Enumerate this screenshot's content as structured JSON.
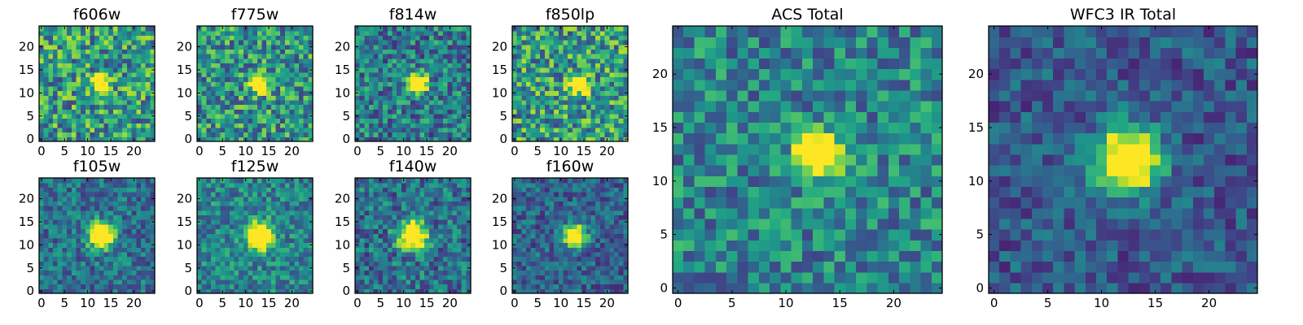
{
  "chart_data": [
    {
      "type": "heatmap",
      "title": "f606w",
      "grid_size": 25,
      "xlim": [
        -0.5,
        24.5
      ],
      "ylim": [
        -0.5,
        24.5
      ],
      "xticks": [
        0,
        5,
        10,
        15,
        20
      ],
      "yticks": [
        0,
        5,
        10,
        15,
        20
      ],
      "source_center": [
        13,
        12
      ],
      "peak_width": 1.2,
      "background_level": 0.55,
      "noise_amplitude": 0.34,
      "seed": 11,
      "colormap": "viridis"
    },
    {
      "type": "heatmap",
      "title": "f775w",
      "grid_size": 25,
      "xlim": [
        -0.5,
        24.5
      ],
      "ylim": [
        -0.5,
        24.5
      ],
      "xticks": [
        0,
        5,
        10,
        15,
        20
      ],
      "yticks": [
        0,
        5,
        10,
        15,
        20
      ],
      "source_center": [
        13,
        12
      ],
      "peak_width": 1.3,
      "background_level": 0.52,
      "noise_amplitude": 0.32,
      "seed": 23,
      "colormap": "viridis"
    },
    {
      "type": "heatmap",
      "title": "f814w",
      "grid_size": 25,
      "xlim": [
        -0.5,
        24.5
      ],
      "ylim": [
        -0.5,
        24.5
      ],
      "xticks": [
        0,
        5,
        10,
        15,
        20
      ],
      "yticks": [
        0,
        5,
        10,
        15,
        20
      ],
      "source_center": [
        13,
        12
      ],
      "peak_width": 1.4,
      "background_level": 0.42,
      "noise_amplitude": 0.28,
      "seed": 37,
      "colormap": "viridis"
    },
    {
      "type": "heatmap",
      "title": "f850lp",
      "grid_size": 25,
      "xlim": [
        -0.5,
        24.5
      ],
      "ylim": [
        -0.5,
        24.5
      ],
      "xticks": [
        0,
        5,
        10,
        15,
        20
      ],
      "yticks": [
        0,
        5,
        10,
        15,
        20
      ],
      "source_center": [
        14,
        12
      ],
      "peak_width": 1.3,
      "background_level": 0.55,
      "noise_amplitude": 0.34,
      "seed": 41,
      "colormap": "viridis"
    },
    {
      "type": "heatmap",
      "title": "f105w",
      "grid_size": 25,
      "xlim": [
        -0.5,
        24.5
      ],
      "ylim": [
        -0.5,
        24.5
      ],
      "xticks": [
        0,
        5,
        10,
        15,
        20
      ],
      "yticks": [
        0,
        5,
        10,
        15,
        20
      ],
      "source_center": [
        13,
        12
      ],
      "peak_width": 1.8,
      "background_level": 0.38,
      "noise_amplitude": 0.22,
      "seed": 53,
      "colormap": "viridis"
    },
    {
      "type": "heatmap",
      "title": "f125w",
      "grid_size": 25,
      "xlim": [
        -0.5,
        24.5
      ],
      "ylim": [
        -0.5,
        24.5
      ],
      "xticks": [
        0,
        5,
        10,
        15,
        20
      ],
      "yticks": [
        0,
        5,
        10,
        15,
        20
      ],
      "source_center": [
        13,
        12
      ],
      "peak_width": 1.9,
      "background_level": 0.45,
      "noise_amplitude": 0.22,
      "seed": 67,
      "colormap": "viridis"
    },
    {
      "type": "heatmap",
      "title": "f140w",
      "grid_size": 25,
      "xlim": [
        -0.5,
        24.5
      ],
      "ylim": [
        -0.5,
        24.5
      ],
      "xticks": [
        0,
        5,
        10,
        15,
        20
      ],
      "yticks": [
        0,
        5,
        10,
        15,
        20
      ],
      "source_center": [
        12,
        12
      ],
      "peak_width": 2.0,
      "background_level": 0.38,
      "noise_amplitude": 0.25,
      "seed": 79,
      "colormap": "viridis"
    },
    {
      "type": "heatmap",
      "title": "f160w",
      "grid_size": 25,
      "xlim": [
        -0.5,
        24.5
      ],
      "ylim": [
        -0.5,
        24.5
      ],
      "xticks": [
        0,
        5,
        10,
        15,
        20
      ],
      "yticks": [
        0,
        5,
        10,
        15,
        20
      ],
      "source_center": [
        13,
        12
      ],
      "peak_width": 1.6,
      "background_level": 0.32,
      "noise_amplitude": 0.2,
      "seed": 83,
      "colormap": "viridis"
    },
    {
      "type": "heatmap",
      "title": "ACS Total",
      "grid_size": 25,
      "xlim": [
        -0.5,
        24.5
      ],
      "ylim": [
        -0.5,
        24.5
      ],
      "xticks": [
        0,
        5,
        10,
        15,
        20
      ],
      "yticks": [
        0,
        5,
        10,
        15,
        20
      ],
      "source_center": [
        13,
        12.5
      ],
      "peak_width": 1.4,
      "background_level": 0.45,
      "noise_amplitude": 0.25,
      "seed": 97,
      "colormap": "viridis"
    },
    {
      "type": "heatmap",
      "title": "WFC3 IR Total",
      "grid_size": 25,
      "xlim": [
        -0.5,
        24.5
      ],
      "ylim": [
        -0.5,
        24.5
      ],
      "xticks": [
        0,
        5,
        10,
        15,
        20
      ],
      "yticks": [
        0,
        5,
        10,
        15,
        20
      ],
      "source_center": [
        12.5,
        12
      ],
      "peak_width": 2.0,
      "background_level": 0.28,
      "noise_amplitude": 0.18,
      "seed": 101,
      "colormap": "viridis"
    }
  ]
}
